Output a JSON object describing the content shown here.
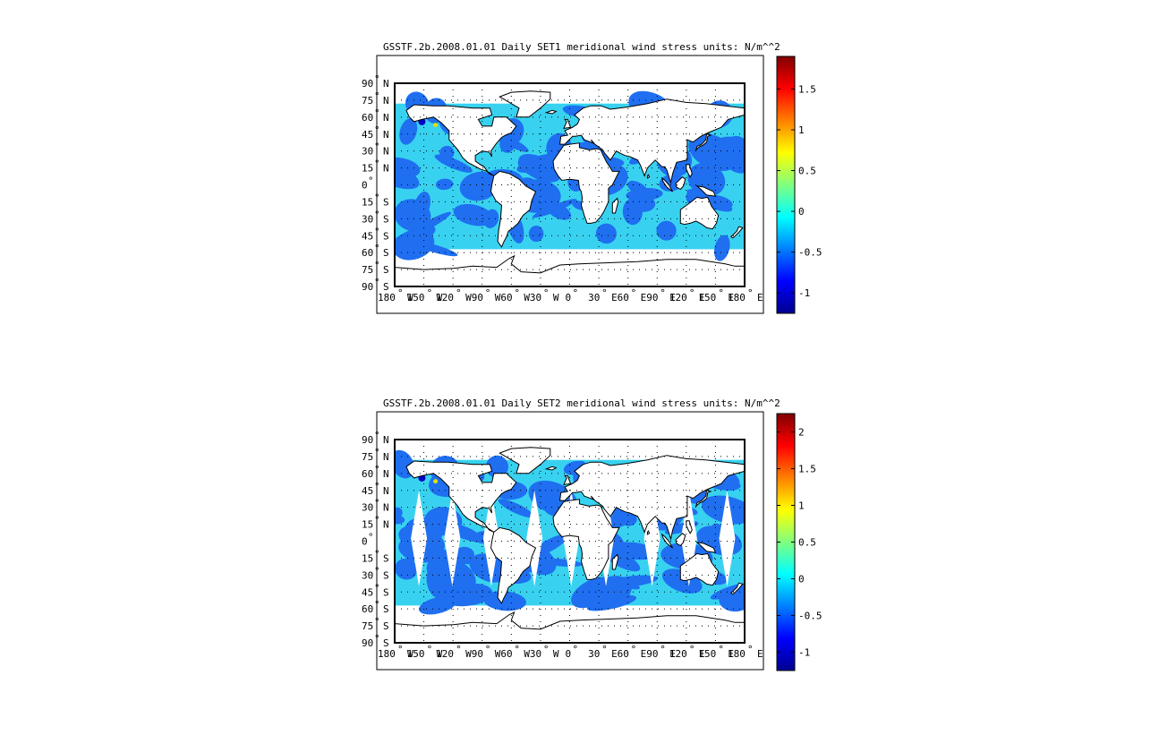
{
  "chart_data": [
    {
      "type": "heatmap",
      "title": "GSSTF.2b.2008.01.01 Daily SET1 meridional wind stress   units: N/m^^2",
      "lat_ticks": [
        {
          "value": 90,
          "deg": "90",
          "hemi": "N"
        },
        {
          "value": 75,
          "deg": "75",
          "hemi": "N"
        },
        {
          "value": 60,
          "deg": "60",
          "hemi": "N"
        },
        {
          "value": 45,
          "deg": "45",
          "hemi": "N"
        },
        {
          "value": 30,
          "deg": "30",
          "hemi": "N"
        },
        {
          "value": 15,
          "deg": "15",
          "hemi": "N"
        },
        {
          "value": 0,
          "deg": "0",
          "hemi": ""
        },
        {
          "value": -15,
          "deg": "15",
          "hemi": "S"
        },
        {
          "value": -30,
          "deg": "30",
          "hemi": "S"
        },
        {
          "value": -45,
          "deg": "45",
          "hemi": "S"
        },
        {
          "value": -60,
          "deg": "60",
          "hemi": "S"
        },
        {
          "value": -75,
          "deg": "75",
          "hemi": "S"
        },
        {
          "value": -90,
          "deg": "90",
          "hemi": "S"
        }
      ],
      "lon_ticks": [
        {
          "value": -180,
          "deg": "180",
          "hemi": "W"
        },
        {
          "value": -150,
          "deg": "150",
          "hemi": "W"
        },
        {
          "value": -120,
          "deg": "120",
          "hemi": "W"
        },
        {
          "value": -90,
          "deg": "90",
          "hemi": "W"
        },
        {
          "value": -60,
          "deg": "60",
          "hemi": "W"
        },
        {
          "value": -30,
          "deg": "30",
          "hemi": "W"
        },
        {
          "value": 0,
          "deg": "0",
          "hemi": ""
        },
        {
          "value": 30,
          "deg": "30",
          "hemi": "E"
        },
        {
          "value": 60,
          "deg": "60",
          "hemi": "E"
        },
        {
          "value": 90,
          "deg": "90",
          "hemi": "E"
        },
        {
          "value": 120,
          "deg": "120",
          "hemi": "E"
        },
        {
          "value": 150,
          "deg": "150",
          "hemi": "E"
        },
        {
          "value": 180,
          "deg": "180",
          "hemi": "E"
        }
      ],
      "lat_range": [
        -90,
        90
      ],
      "lon_range": [
        -180,
        180
      ],
      "grid": true,
      "colormap": "jet",
      "colorbar": {
        "range": [
          -1.25,
          1.9
        ],
        "ticks": [
          {
            "value": -1,
            "label": "-1"
          },
          {
            "value": -0.5,
            "label": "-0.5"
          },
          {
            "value": 0,
            "label": "0"
          },
          {
            "value": 0.5,
            "label": "0.5"
          },
          {
            "value": 1,
            "label": "1"
          },
          {
            "value": 1.5,
            "label": "1.5"
          }
        ]
      },
      "approx_field": {
        "data_lat_range": [
          -57,
          72
        ],
        "dominant_values": [
          -0.5,
          -0.15
        ],
        "min_observed": -1.1,
        "max_observed": 0.5
      }
    },
    {
      "type": "heatmap",
      "title": "GSSTF.2b.2008.01.01 Daily SET2 meridional wind stress   units: N/m^^2",
      "lat_ticks": [
        {
          "value": 90,
          "deg": "90",
          "hemi": "N"
        },
        {
          "value": 75,
          "deg": "75",
          "hemi": "N"
        },
        {
          "value": 60,
          "deg": "60",
          "hemi": "N"
        },
        {
          "value": 45,
          "deg": "45",
          "hemi": "N"
        },
        {
          "value": 30,
          "deg": "30",
          "hemi": "N"
        },
        {
          "value": 15,
          "deg": "15",
          "hemi": "N"
        },
        {
          "value": 0,
          "deg": "0",
          "hemi": ""
        },
        {
          "value": -15,
          "deg": "15",
          "hemi": "S"
        },
        {
          "value": -30,
          "deg": "30",
          "hemi": "S"
        },
        {
          "value": -45,
          "deg": "45",
          "hemi": "S"
        },
        {
          "value": -60,
          "deg": "60",
          "hemi": "S"
        },
        {
          "value": -75,
          "deg": "75",
          "hemi": "S"
        },
        {
          "value": -90,
          "deg": "90",
          "hemi": "S"
        }
      ],
      "lon_ticks": [
        {
          "value": -180,
          "deg": "180",
          "hemi": "W"
        },
        {
          "value": -150,
          "deg": "150",
          "hemi": "W"
        },
        {
          "value": -120,
          "deg": "120",
          "hemi": "W"
        },
        {
          "value": -90,
          "deg": "90",
          "hemi": "W"
        },
        {
          "value": -60,
          "deg": "60",
          "hemi": "W"
        },
        {
          "value": -30,
          "deg": "30",
          "hemi": "W"
        },
        {
          "value": 0,
          "deg": "0",
          "hemi": ""
        },
        {
          "value": 30,
          "deg": "30",
          "hemi": "E"
        },
        {
          "value": 60,
          "deg": "60",
          "hemi": "E"
        },
        {
          "value": 90,
          "deg": "90",
          "hemi": "E"
        },
        {
          "value": 120,
          "deg": "120",
          "hemi": "E"
        },
        {
          "value": 150,
          "deg": "150",
          "hemi": "E"
        },
        {
          "value": 180,
          "deg": "180",
          "hemi": "E"
        }
      ],
      "lat_range": [
        -90,
        90
      ],
      "lon_range": [
        -180,
        180
      ],
      "grid": true,
      "colormap": "jet",
      "colorbar": {
        "range": [
          -1.25,
          2.25
        ],
        "ticks": [
          {
            "value": -1,
            "label": "-1"
          },
          {
            "value": -0.5,
            "label": "-0.5"
          },
          {
            "value": 0,
            "label": "0"
          },
          {
            "value": 0.5,
            "label": "0.5"
          },
          {
            "value": 1,
            "label": "1"
          },
          {
            "value": 1.5,
            "label": "1.5"
          },
          {
            "value": 2,
            "label": "2"
          }
        ]
      },
      "approx_field": {
        "data_lat_range": [
          -57,
          72
        ],
        "dominant_values": [
          -0.5,
          -0.15
        ],
        "min_observed": -1.1,
        "max_observed": 0.4
      }
    }
  ]
}
